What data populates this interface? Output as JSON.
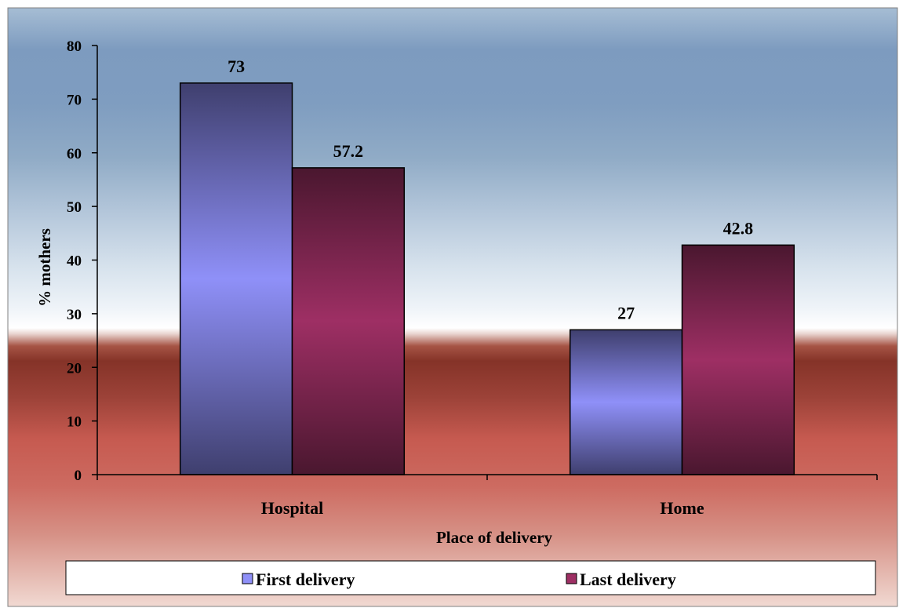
{
  "chart_data": {
    "type": "bar",
    "categories": [
      "Hospital",
      "Home"
    ],
    "series": [
      {
        "name": "First delivery",
        "values": [
          73,
          27
        ],
        "color": "#8F90F8"
      },
      {
        "name": "Last delivery",
        "values": [
          57.2,
          42.8
        ],
        "color": "#9E2F64"
      }
    ],
    "data_labels": [
      [
        "73",
        "27"
      ],
      [
        "57.2",
        "42.8"
      ]
    ],
    "xlabel": "Place of delivery",
    "ylabel": "% mothers",
    "ylim": [
      0,
      80
    ],
    "yticks": [
      0,
      10,
      20,
      30,
      40,
      50,
      60,
      70,
      80
    ],
    "grid": false,
    "legend_position": "bottom"
  }
}
